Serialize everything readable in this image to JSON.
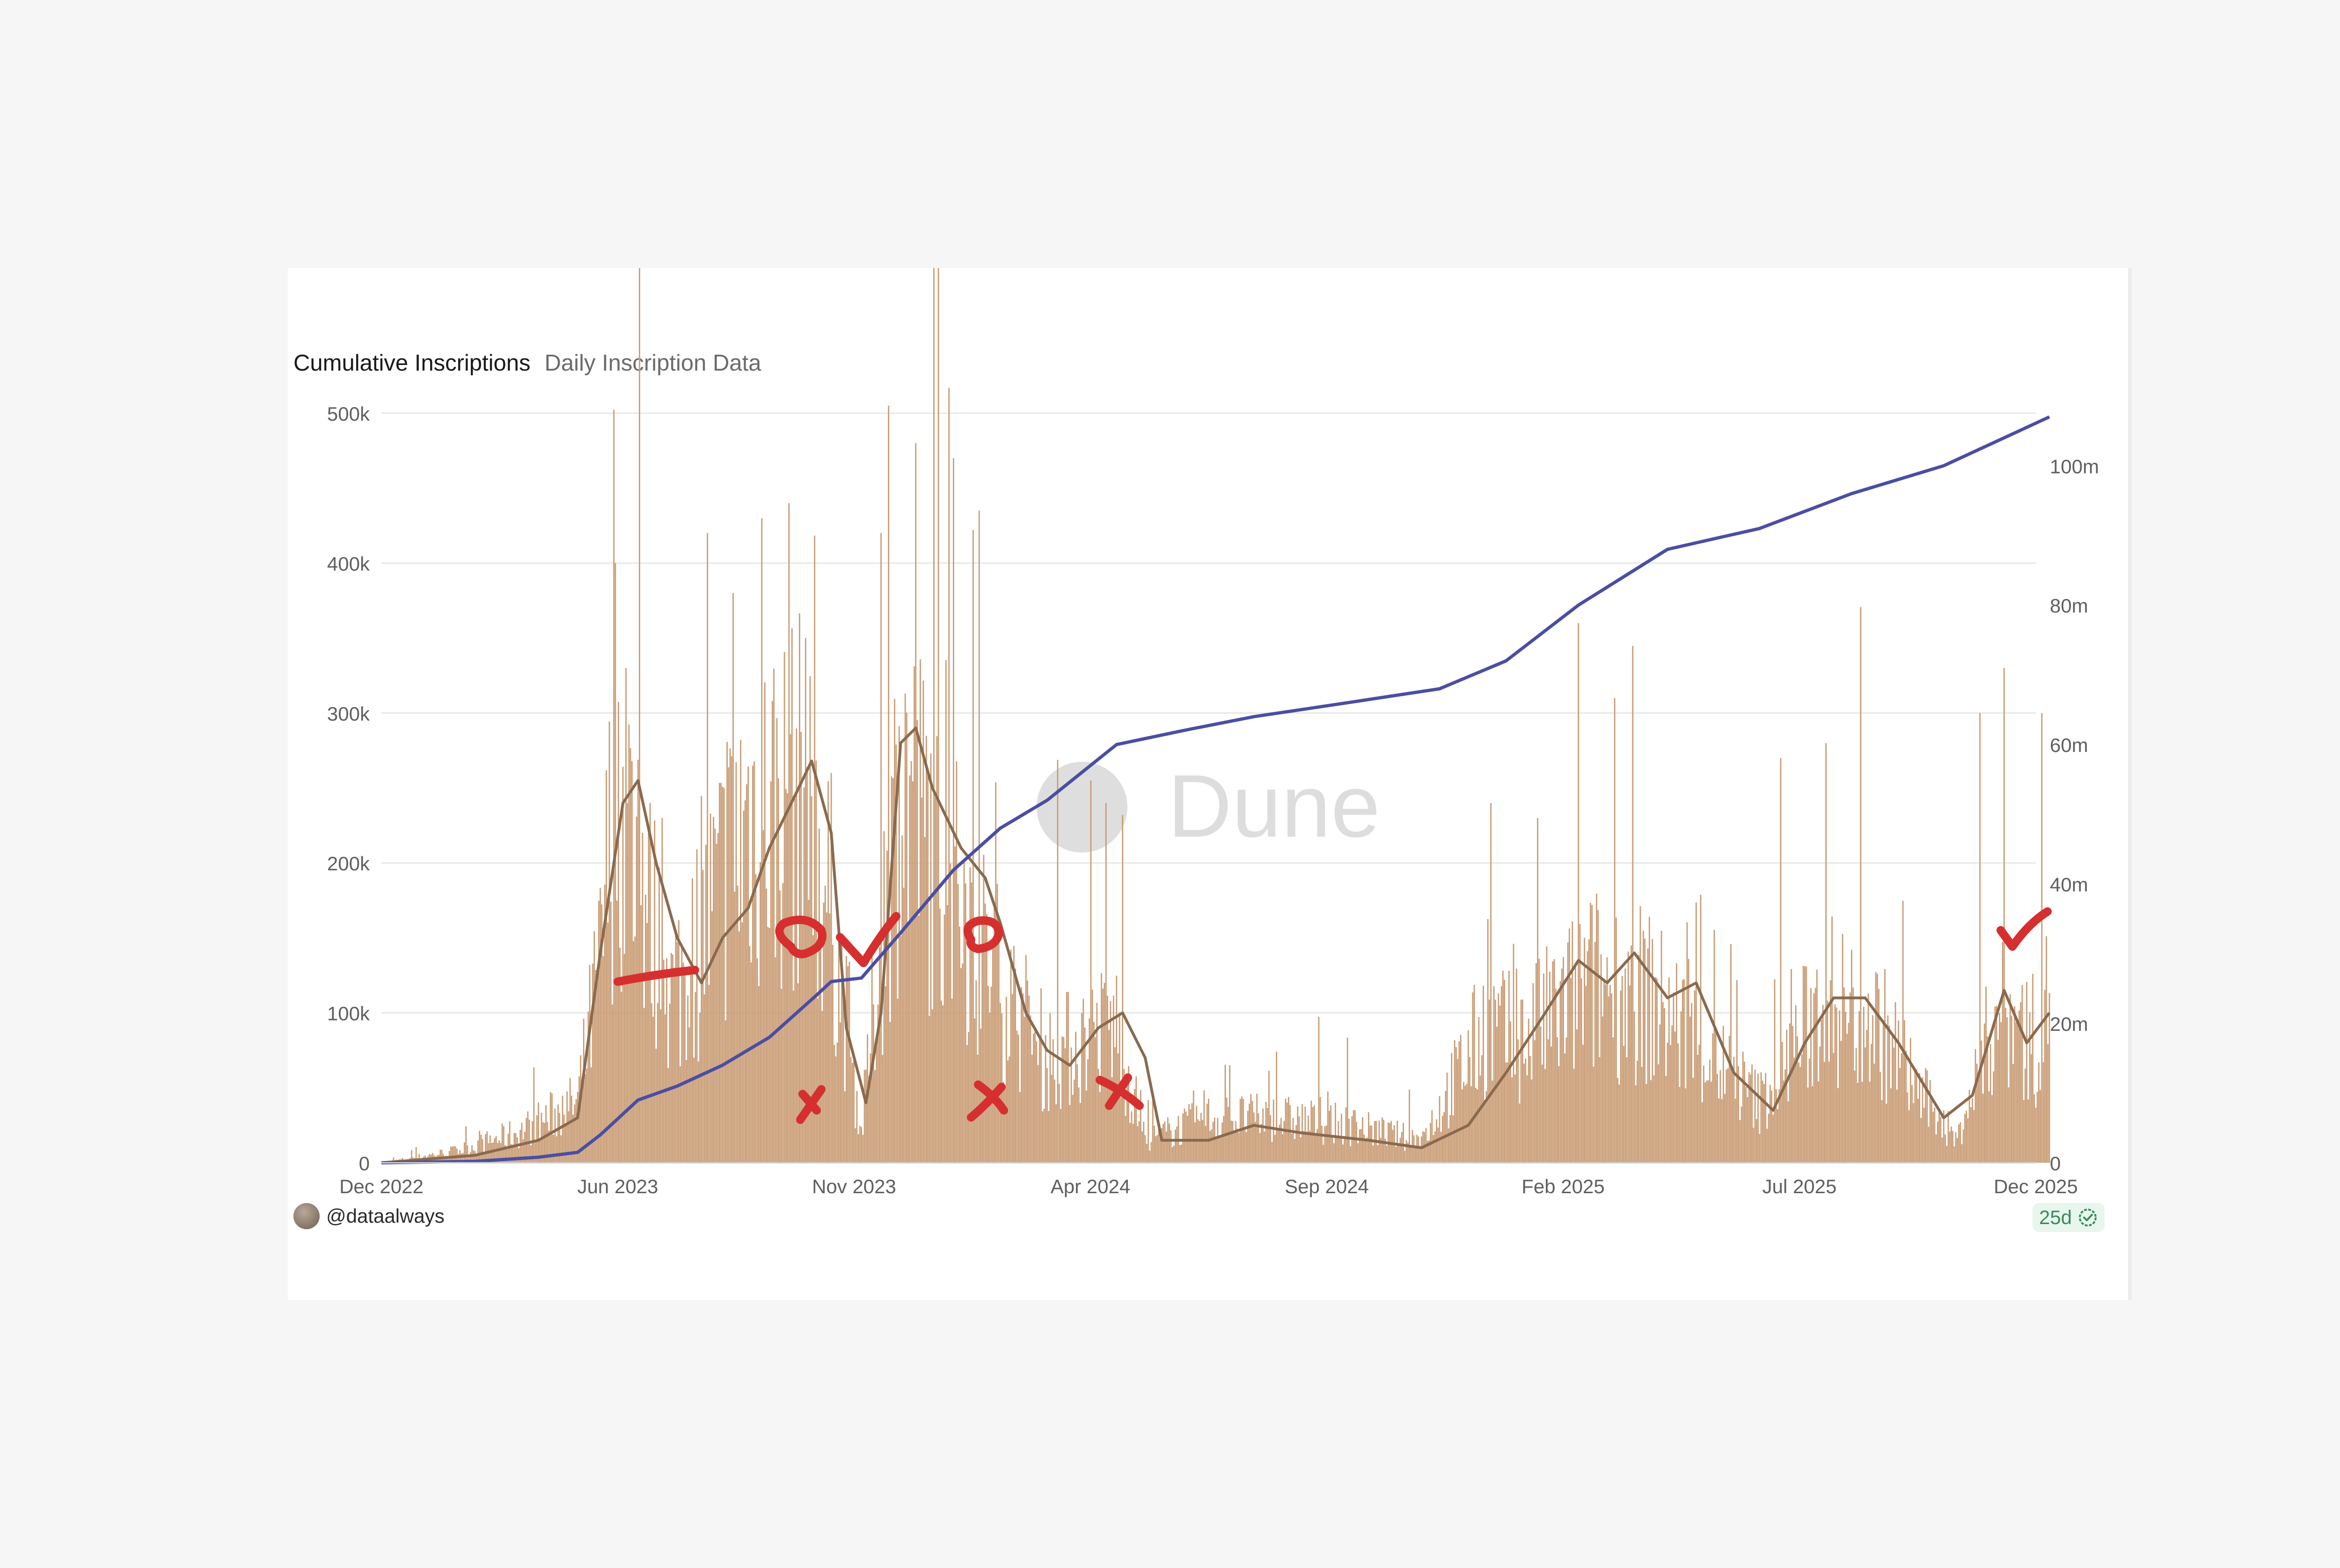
{
  "tabs": {
    "active": "Cumulative Inscriptions",
    "inactive": "Daily Inscription Data"
  },
  "author": "@dataalways",
  "badge": "25d",
  "watermark": "Dune",
  "colors": {
    "bars": "#c89a72",
    "moving_average": "#8a6a4e",
    "cumulative": "#4a4ea3",
    "annotation": "#d62f2f",
    "grid": "#e7e7e7"
  },
  "chart_data": {
    "type": "bar",
    "x_ticks": [
      "Dec 2022",
      "Jun 2023",
      "Nov 2023",
      "Apr 2024",
      "Sep 2024",
      "Feb 2025",
      "Jul 2025",
      "Dec 2025"
    ],
    "y_left": {
      "ticks": [
        "0",
        "100k",
        "200k",
        "300k",
        "400k",
        "500k"
      ],
      "lim": [
        0,
        500000
      ]
    },
    "y_right": {
      "ticks": [
        "0",
        "20m",
        "40m",
        "60m",
        "80m",
        "100m"
      ],
      "lim": [
        0,
        107000000
      ]
    },
    "grid": true,
    "series": [
      {
        "kind": "bar",
        "axis": "left",
        "envelope": [
          [
            "2022-12-01",
            0
          ],
          [
            "2023-01-20",
            8000
          ],
          [
            "2023-03-01",
            20000
          ],
          [
            "2023-04-10",
            40000
          ],
          [
            "2023-04-25",
            130000
          ],
          [
            "2023-05-05",
            260000
          ],
          [
            "2023-05-20",
            200000
          ],
          [
            "2023-06-10",
            110000
          ],
          [
            "2023-07-01",
            150000
          ],
          [
            "2023-08-01",
            230000
          ],
          [
            "2023-09-05",
            240000
          ],
          [
            "2023-09-25",
            170000
          ],
          [
            "2023-10-15",
            20000
          ],
          [
            "2023-10-25",
            120000
          ],
          [
            "2023-11-10",
            260000
          ],
          [
            "2023-12-01",
            210000
          ],
          [
            "2023-12-25",
            160000
          ],
          [
            "2024-01-20",
            110000
          ],
          [
            "2024-02-15",
            70000
          ],
          [
            "2024-03-10",
            80000
          ],
          [
            "2024-04-01",
            90000
          ],
          [
            "2024-04-20",
            15000
          ],
          [
            "2024-06-01",
            30000
          ],
          [
            "2024-07-15",
            30000
          ],
          [
            "2024-09-01",
            25000
          ],
          [
            "2024-10-20",
            15000
          ],
          [
            "2024-12-01",
            90000
          ],
          [
            "2024-12-25",
            80000
          ],
          [
            "2025-02-10",
            120000
          ],
          [
            "2025-03-20",
            110000
          ],
          [
            "2025-05-01",
            70000
          ],
          [
            "2025-06-01",
            40000
          ],
          [
            "2025-07-15",
            110000
          ],
          [
            "2025-08-20",
            90000
          ],
          [
            "2025-09-20",
            40000
          ],
          [
            "2025-10-10",
            15000
          ],
          [
            "2025-11-05",
            100000
          ],
          [
            "2025-12-01",
            80000
          ],
          [
            "2025-12-10",
            110000
          ]
        ],
        "peaks": [
          [
            "2023-05-05",
            400000
          ],
          [
            "2023-05-12",
            330000
          ],
          [
            "2023-06-05",
            230000
          ],
          [
            "2023-07-05",
            420000
          ],
          [
            "2023-07-22",
            380000
          ],
          [
            "2023-08-10",
            430000
          ],
          [
            "2023-08-28",
            440000
          ],
          [
            "2023-09-08",
            350000
          ],
          [
            "2023-10-28",
            420000
          ],
          [
            "2023-11-02",
            505000
          ],
          [
            "2023-11-20",
            480000
          ],
          [
            "2023-12-15",
            470000
          ],
          [
            "2024-01-01",
            435000
          ],
          [
            "2024-03-15",
            255000
          ],
          [
            "2024-03-25",
            240000
          ],
          [
            "2024-06-15",
            65000
          ],
          [
            "2024-12-05",
            240000
          ],
          [
            "2025-01-05",
            230000
          ],
          [
            "2025-02-01",
            360000
          ],
          [
            "2025-02-25",
            310000
          ],
          [
            "2025-06-15",
            270000
          ],
          [
            "2025-07-15",
            280000
          ],
          [
            "2025-10-25",
            300000
          ],
          [
            "2025-11-10",
            330000
          ],
          [
            "2025-12-05",
            300000
          ]
        ]
      },
      {
        "kind": "line",
        "axis": "left",
        "points": [
          [
            "2022-12-01",
            0
          ],
          [
            "2023-02-01",
            5000
          ],
          [
            "2023-03-15",
            15000
          ],
          [
            "2023-04-10",
            30000
          ],
          [
            "2023-04-25",
            140000
          ],
          [
            "2023-05-10",
            240000
          ],
          [
            "2023-05-20",
            255000
          ],
          [
            "2023-06-01",
            200000
          ],
          [
            "2023-06-15",
            150000
          ],
          [
            "2023-07-01",
            120000
          ],
          [
            "2023-07-15",
            150000
          ],
          [
            "2023-08-01",
            170000
          ],
          [
            "2023-08-15",
            210000
          ],
          [
            "2023-09-01",
            245000
          ],
          [
            "2023-09-12",
            268000
          ],
          [
            "2023-09-25",
            220000
          ],
          [
            "2023-10-05",
            90000
          ],
          [
            "2023-10-18",
            40000
          ],
          [
            "2023-10-28",
            100000
          ],
          [
            "2023-11-10",
            280000
          ],
          [
            "2023-11-20",
            290000
          ],
          [
            "2023-12-01",
            250000
          ],
          [
            "2023-12-20",
            210000
          ],
          [
            "2024-01-05",
            190000
          ],
          [
            "2024-01-15",
            160000
          ],
          [
            "2024-02-01",
            100000
          ],
          [
            "2024-02-15",
            75000
          ],
          [
            "2024-03-01",
            65000
          ],
          [
            "2024-03-20",
            90000
          ],
          [
            "2024-04-05",
            100000
          ],
          [
            "2024-04-20",
            70000
          ],
          [
            "2024-05-01",
            15000
          ],
          [
            "2024-06-01",
            15000
          ],
          [
            "2024-07-01",
            25000
          ],
          [
            "2024-08-01",
            20000
          ],
          [
            "2024-09-15",
            15000
          ],
          [
            "2024-10-20",
            10000
          ],
          [
            "2024-11-20",
            25000
          ],
          [
            "2024-12-15",
            60000
          ],
          [
            "2025-01-10",
            100000
          ],
          [
            "2025-02-01",
            135000
          ],
          [
            "2025-02-20",
            120000
          ],
          [
            "2025-03-10",
            140000
          ],
          [
            "2025-04-01",
            110000
          ],
          [
            "2025-04-20",
            120000
          ],
          [
            "2025-05-15",
            60000
          ],
          [
            "2025-06-10",
            35000
          ],
          [
            "2025-07-01",
            80000
          ],
          [
            "2025-07-20",
            110000
          ],
          [
            "2025-08-10",
            110000
          ],
          [
            "2025-09-01",
            80000
          ],
          [
            "2025-10-01",
            30000
          ],
          [
            "2025-10-20",
            45000
          ],
          [
            "2025-11-10",
            115000
          ],
          [
            "2025-11-25",
            80000
          ],
          [
            "2025-12-10",
            100000
          ]
        ]
      },
      {
        "kind": "line",
        "axis": "right",
        "points": [
          [
            "2022-12-01",
            0
          ],
          [
            "2023-02-01",
            200000
          ],
          [
            "2023-03-15",
            800000
          ],
          [
            "2023-04-10",
            1500000
          ],
          [
            "2023-04-25",
            4000000
          ],
          [
            "2023-05-20",
            9000000
          ],
          [
            "2023-06-15",
            11000000
          ],
          [
            "2023-07-15",
            14000000
          ],
          [
            "2023-08-15",
            18000000
          ],
          [
            "2023-09-15",
            24000000
          ],
          [
            "2023-09-25",
            26000000
          ],
          [
            "2023-10-15",
            26500000
          ],
          [
            "2023-11-10",
            33000000
          ],
          [
            "2023-12-15",
            42000000
          ],
          [
            "2024-01-15",
            48000000
          ],
          [
            "2024-02-15",
            52000000
          ],
          [
            "2024-04-01",
            60000000
          ],
          [
            "2024-05-15",
            62000000
          ],
          [
            "2024-07-01",
            64000000
          ],
          [
            "2024-09-01",
            66000000
          ],
          [
            "2024-11-01",
            68000000
          ],
          [
            "2024-12-15",
            72000000
          ],
          [
            "2025-02-01",
            80000000
          ],
          [
            "2025-04-01",
            88000000
          ],
          [
            "2025-06-01",
            91000000
          ],
          [
            "2025-08-01",
            96000000
          ],
          [
            "2025-10-01",
            100000000
          ],
          [
            "2025-12-10",
            107000000
          ]
        ]
      }
    ]
  },
  "annotations": [
    "dash",
    "circle",
    "check",
    "circle",
    "cross",
    "cross",
    "cross",
    "check"
  ]
}
